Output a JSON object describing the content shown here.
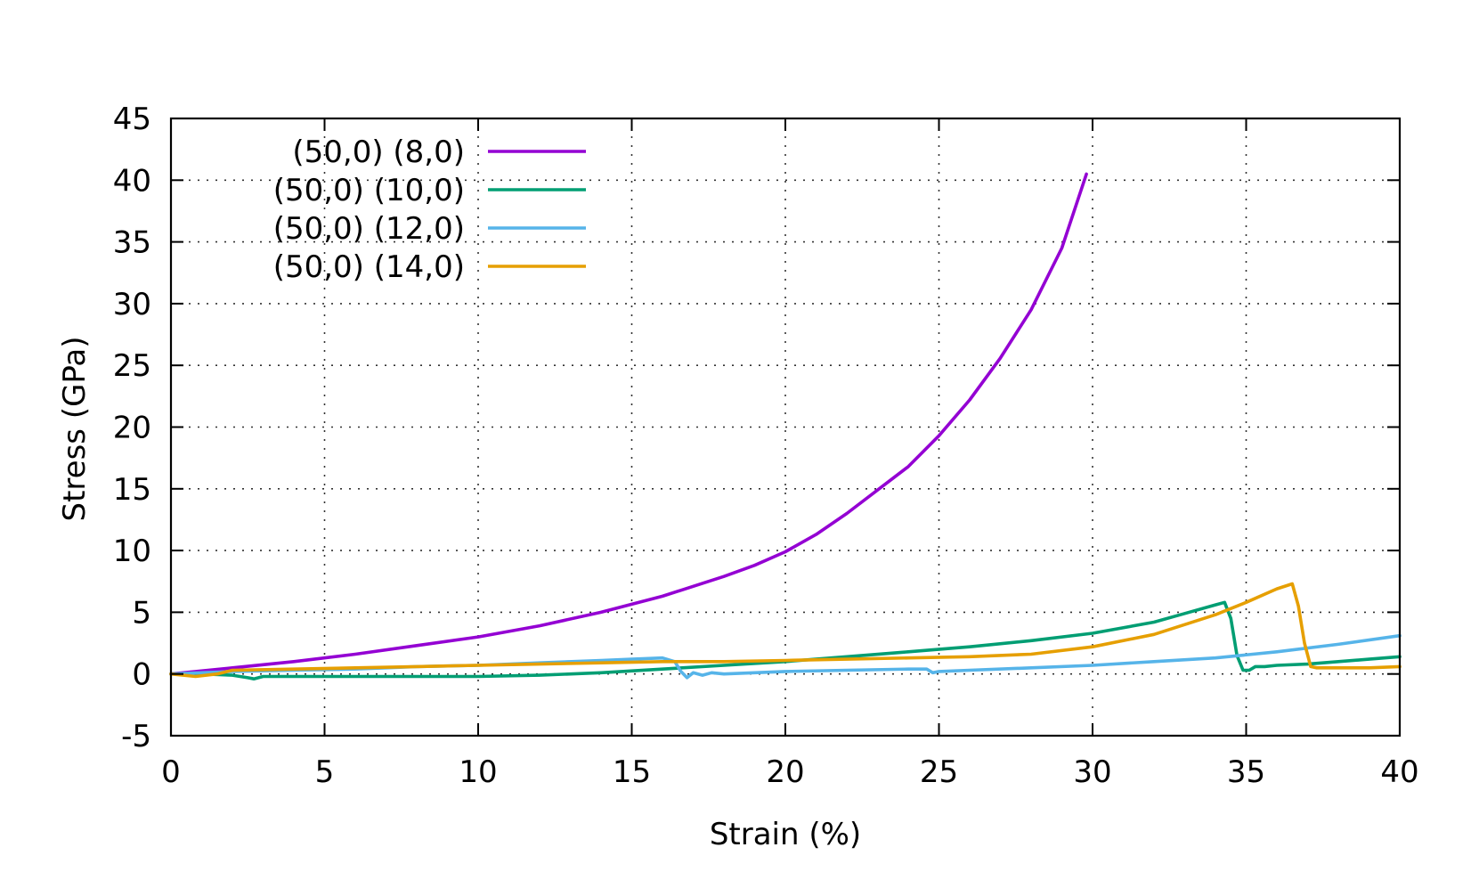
{
  "chart_data": {
    "type": "line",
    "xlabel": "Strain (%)",
    "ylabel": "Stress (GPa)",
    "xlim": [
      0,
      40
    ],
    "ylim": [
      -5,
      45
    ],
    "xticks": [
      0,
      5,
      10,
      15,
      20,
      25,
      30,
      35,
      40
    ],
    "yticks": [
      -5,
      0,
      5,
      10,
      15,
      20,
      25,
      30,
      35,
      40,
      45
    ],
    "grid": true,
    "legend_position": "top-left",
    "series": [
      {
        "name": "(50,0) (8,0)",
        "color": "#9400d3",
        "x": [
          0,
          2,
          4,
          6,
          8,
          10,
          12,
          14,
          16,
          18,
          19,
          20,
          21,
          22,
          23,
          24,
          25,
          26,
          27,
          28,
          29,
          29.8
        ],
        "y": [
          0,
          0.5,
          1.0,
          1.6,
          2.3,
          3.0,
          3.9,
          5.0,
          6.3,
          7.9,
          8.8,
          9.9,
          11.3,
          13.0,
          14.9,
          16.8,
          19.3,
          22.2,
          25.6,
          29.5,
          34.5,
          40.5
        ]
      },
      {
        "name": "(50,0) (10,0)",
        "color": "#009e73",
        "x": [
          0,
          1,
          2,
          2.5,
          2.7,
          3,
          5,
          8,
          10,
          12,
          14,
          16,
          18,
          20,
          22,
          24,
          26,
          28,
          30,
          32,
          33,
          34,
          34.3,
          34.5,
          34.7,
          34.9,
          35.1,
          35.3,
          35.6,
          36,
          37,
          38,
          39,
          40
        ],
        "y": [
          0,
          0,
          -0.1,
          -0.3,
          -0.4,
          -0.2,
          -0.2,
          -0.2,
          -0.2,
          -0.1,
          0.1,
          0.4,
          0.7,
          1.0,
          1.4,
          1.8,
          2.2,
          2.7,
          3.3,
          4.2,
          4.9,
          5.6,
          5.8,
          4.5,
          1.5,
          0.3,
          0.3,
          0.6,
          0.6,
          0.7,
          0.8,
          1.0,
          1.2,
          1.4
        ]
      },
      {
        "name": "(50,0) (12,0)",
        "color": "#56b4e9",
        "x": [
          0,
          2,
          4,
          6,
          8,
          10,
          12,
          14,
          15,
          16,
          16.4,
          16.6,
          16.8,
          17,
          17.3,
          17.6,
          18,
          19,
          20,
          22,
          24,
          24.6,
          24.8,
          25,
          26,
          28,
          30,
          32,
          34,
          36,
          38,
          40
        ],
        "y": [
          0,
          0.2,
          0.3,
          0.4,
          0.6,
          0.7,
          0.9,
          1.1,
          1.2,
          1.3,
          1.0,
          0.2,
          -0.3,
          0.1,
          -0.1,
          0.1,
          0.0,
          0.1,
          0.2,
          0.3,
          0.4,
          0.4,
          0.1,
          0.2,
          0.3,
          0.5,
          0.7,
          1.0,
          1.3,
          1.8,
          2.4,
          3.1
        ]
      },
      {
        "name": "(50,0) (14,0)",
        "color": "#e69f00",
        "x": [
          0,
          0.8,
          1.5,
          2,
          4,
          6,
          8,
          10,
          12,
          14,
          16,
          18,
          20,
          22,
          24,
          26,
          28,
          30,
          32,
          34,
          35,
          36,
          36.5,
          36.7,
          36.9,
          37.1,
          37.3,
          38,
          39,
          40
        ],
        "y": [
          0,
          -0.2,
          0,
          0.3,
          0.4,
          0.5,
          0.6,
          0.7,
          0.8,
          0.9,
          1.0,
          1.0,
          1.1,
          1.2,
          1.3,
          1.4,
          1.6,
          2.2,
          3.2,
          4.8,
          5.8,
          6.9,
          7.3,
          5.5,
          2.5,
          0.6,
          0.5,
          0.5,
          0.5,
          0.6
        ]
      }
    ]
  }
}
